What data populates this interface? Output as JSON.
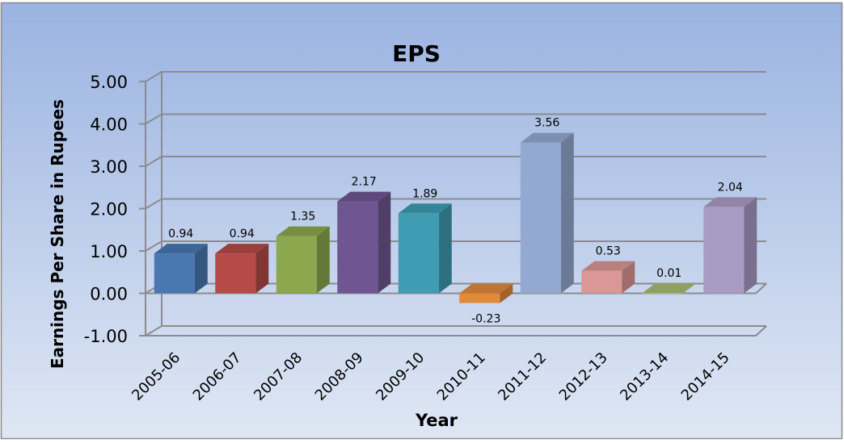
{
  "chart_data": {
    "type": "bar",
    "title": "EPS",
    "xlabel": "Year",
    "ylabel": "Earnings Per Share in Rupees",
    "categories": [
      "2005-06",
      "2006-07",
      "2007-08",
      "2008-09",
      "2009-10",
      "2010-11",
      "2011-12",
      "2012-13",
      "2013-14",
      "2014-15"
    ],
    "values": [
      0.94,
      0.94,
      1.35,
      2.17,
      1.89,
      -0.23,
      3.56,
      0.53,
      0.01,
      2.04
    ],
    "data_labels": [
      "0.94",
      "0.94",
      "1.35",
      "2.17",
      "1.89",
      "-0.23",
      "3.56",
      "0.53",
      "0.01",
      "2.04"
    ],
    "ylim": [
      -1,
      5
    ],
    "yticks": [
      5,
      4,
      3,
      2,
      1,
      0,
      -1
    ],
    "ytick_labels": [
      "5.00",
      "4.00",
      "3.00",
      "2.00",
      "1.00",
      "0.00",
      "-1.00"
    ],
    "grid": true,
    "style": "3d-column",
    "colors": [
      "#4a77b0",
      "#b54a47",
      "#8ba84f",
      "#6f5692",
      "#3f9cb2",
      "#e08a3c",
      "#93a9d2",
      "#db9796",
      "#a9bb76",
      "#a99bc4"
    ]
  }
}
